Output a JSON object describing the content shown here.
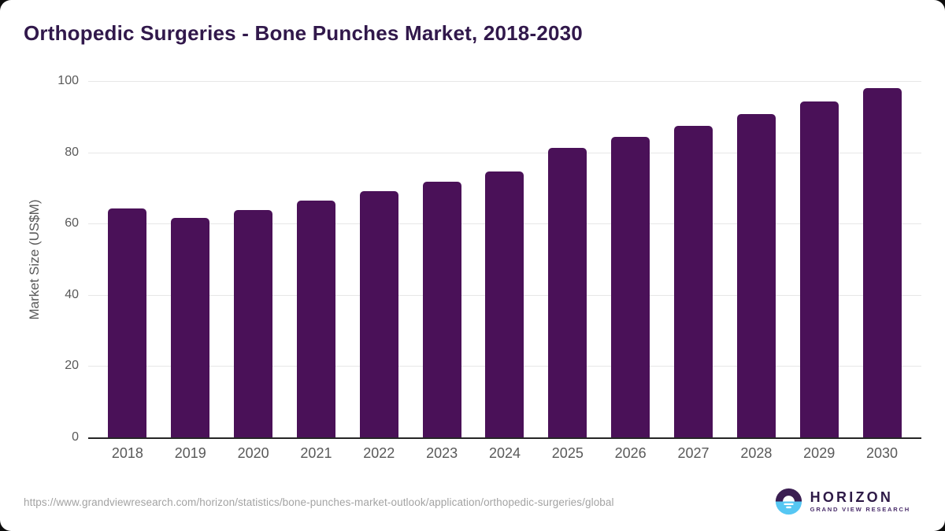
{
  "title": "Orthopedic Surgeries - Bone Punches Market, 2018-2030",
  "colors": {
    "bar": "#4a1158",
    "title_text": "#31184b",
    "tick_text": "#595959",
    "axis_line": "#262626",
    "gridline": "#e7e7e7",
    "url_text": "#a3a3a3",
    "logo_purple": "#3b1e52",
    "logo_blue": "#56c7f3",
    "page_bg": "#ffffff",
    "outer_bg": "#0d0d0d"
  },
  "chart_data": {
    "type": "bar",
    "title": "Orthopedic Surgeries - Bone Punches Market, 2018-2030",
    "categories": [
      "2018",
      "2019",
      "2020",
      "2021",
      "2022",
      "2023",
      "2024",
      "2025",
      "2026",
      "2027",
      "2028",
      "2029",
      "2030"
    ],
    "values": [
      64.2,
      61.5,
      63.8,
      66.5,
      69.0,
      71.8,
      74.7,
      81.2,
      84.3,
      87.5,
      90.7,
      94.3,
      98.0
    ],
    "xlabel": "",
    "ylabel": "Market Size (US$M)",
    "ylim": [
      0,
      100
    ],
    "yticks": [
      0,
      20,
      40,
      60,
      80,
      100
    ],
    "grid": "horizontal",
    "legend": "none",
    "bar_color": "#4a1158"
  },
  "footer": {
    "source_url": "https://www.grandviewresearch.com/horizon/statistics/bone-punches-market-outlook/application/orthopedic-surgeries/global",
    "logo": {
      "name": "HORIZON",
      "subtitle": "GRAND VIEW RESEARCH"
    }
  }
}
